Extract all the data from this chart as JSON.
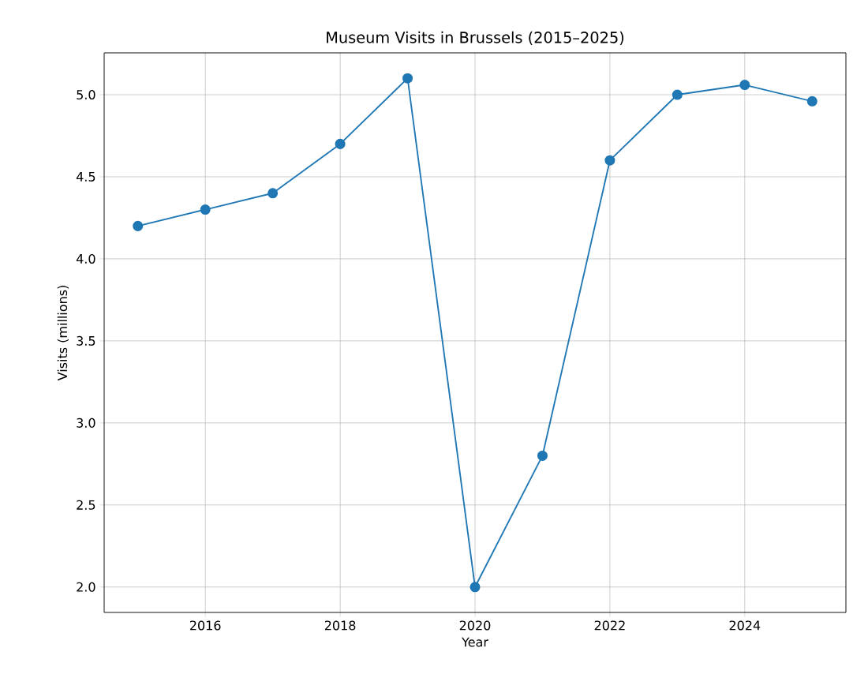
{
  "chart_data": {
    "type": "line",
    "title": "Museum Visits in Brussels (2015–2025)",
    "xlabel": "Year",
    "ylabel": "Visits (millions)",
    "x": [
      2015,
      2016,
      2017,
      2018,
      2019,
      2020,
      2021,
      2022,
      2023,
      2024,
      2025
    ],
    "values": [
      4.2,
      4.3,
      4.4,
      4.7,
      5.1,
      2.0,
      2.8,
      4.6,
      5.0,
      5.06,
      4.96
    ],
    "color": "#1f77b4",
    "marker": "circle",
    "line_style": "solid",
    "grid": true,
    "xlim": [
      2014.5,
      2025.5
    ],
    "ylim": [
      1.845,
      5.255
    ],
    "xticks": [
      2016,
      2018,
      2020,
      2022,
      2024
    ],
    "yticks": [
      {
        "value": 2,
        "label": "2.0"
      },
      {
        "value": 2.5,
        "label": "2.5"
      },
      {
        "value": 3,
        "label": "3.0"
      },
      {
        "value": 3.5,
        "label": "3.5"
      },
      {
        "value": 4,
        "label": "4.0"
      },
      {
        "value": 4.5,
        "label": "4.5"
      },
      {
        "value": 5,
        "label": "5.0"
      }
    ]
  }
}
